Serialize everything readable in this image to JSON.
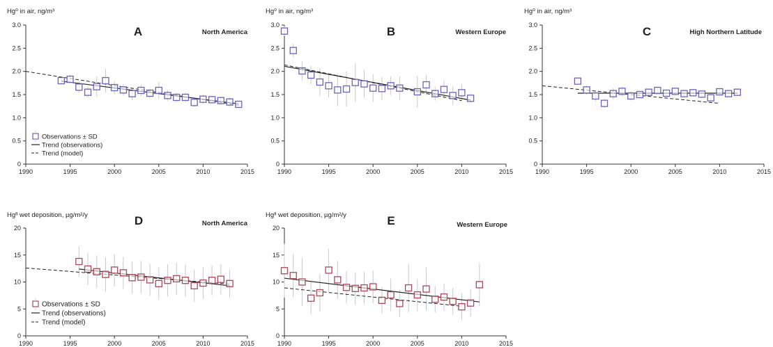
{
  "figure": {
    "colors": {
      "air": "#6a64b8",
      "deposition": "#a8485a",
      "error_bar": "#c9c9c9",
      "line": "#222222"
    }
  },
  "legend": {
    "observations": "Observations ± SD",
    "trend_obs": "Trend (observations)",
    "trend_model": "Trend (model)"
  },
  "chart_data": [
    {
      "type": "scatter",
      "panel": "A",
      "title": "North America",
      "ylabel": "Hg⁰ in air, ng/m³",
      "xlim": [
        1990,
        2015
      ],
      "ylim": [
        0,
        3.0
      ],
      "xticks": [
        1990,
        1995,
        2000,
        2005,
        2010,
        2015
      ],
      "yticks": [
        "0",
        "0.5",
        "1.0",
        "1.5",
        "2.0",
        "2.5",
        "3.0"
      ],
      "legend": true,
      "series": [
        {
          "name": "Observations ± SD",
          "x": [
            1994,
            1995,
            1996,
            1997,
            1998,
            1999,
            2000,
            2001,
            2002,
            2003,
            2004,
            2005,
            2006,
            2007,
            2008,
            2009,
            2010,
            2011,
            2012,
            2013,
            2014
          ],
          "y": [
            1.8,
            1.83,
            1.66,
            1.55,
            1.67,
            1.8,
            1.65,
            1.6,
            1.52,
            1.59,
            1.53,
            1.59,
            1.48,
            1.44,
            1.44,
            1.33,
            1.4,
            1.39,
            1.37,
            1.34,
            1.29
          ],
          "sd": [
            0.08,
            0.1,
            0.12,
            0.12,
            0.22,
            0.25,
            0.14,
            0.12,
            0.14,
            0.12,
            0.1,
            0.18,
            0.12,
            0.1,
            0.1,
            0.1,
            0.1,
            0.08,
            0.08,
            0.1,
            0.08
          ]
        }
      ],
      "trend_observations": {
        "x": [
          1994,
          2014
        ],
        "y": [
          1.79,
          1.3
        ]
      },
      "trend_model": {
        "x": [
          1990,
          2014
        ],
        "y": [
          2.0,
          1.27
        ]
      }
    },
    {
      "type": "scatter",
      "panel": "B",
      "title": "Western Europe",
      "ylabel": "Hg⁰ in air, ng/m³",
      "xlim": [
        1990,
        2015
      ],
      "ylim": [
        0,
        3.0
      ],
      "xticks": [
        1990,
        1995,
        2000,
        2005,
        2010,
        2015
      ],
      "yticks": [
        "0",
        "0.5",
        "1.0",
        "1.5",
        "2.0",
        "2.5",
        "3.0"
      ],
      "legend": false,
      "series": [
        {
          "name": "Observations ± SD",
          "x": [
            1990,
            1991,
            1992,
            1993,
            1994,
            1995,
            1996,
            1997,
            1998,
            1999,
            2000,
            2001,
            2002,
            2003,
            2005,
            2006,
            2007,
            2008,
            2009,
            2010,
            2011
          ],
          "y": [
            2.87,
            2.45,
            2.01,
            1.92,
            1.77,
            1.69,
            1.6,
            1.62,
            1.76,
            1.73,
            1.64,
            1.63,
            1.69,
            1.64,
            1.56,
            1.71,
            1.52,
            1.61,
            1.48,
            1.54,
            1.42
          ],
          "sd": [
            0.1,
            0.15,
            0.2,
            0.2,
            0.3,
            0.25,
            0.35,
            0.38,
            0.42,
            0.3,
            0.3,
            0.25,
            0.2,
            0.25,
            0.35,
            0.22,
            0.15,
            0.2,
            0.2,
            0.18,
            0.1
          ]
        }
      ],
      "trend_observations": {
        "x": [
          1990,
          2011
        ],
        "y": [
          2.11,
          1.38
        ]
      },
      "trend_model": {
        "x": [
          1990,
          2010
        ],
        "y": [
          2.14,
          1.37
        ]
      }
    },
    {
      "type": "scatter",
      "panel": "C",
      "title": "High Northern Latitude",
      "ylabel": "Hg⁰ in air, ng/m³",
      "xlim": [
        1990,
        2015
      ],
      "ylim": [
        0,
        3.0
      ],
      "xticks": [
        1990,
        1995,
        2000,
        2005,
        2010,
        2015
      ],
      "yticks": [
        "0",
        "0.5",
        "1.0",
        "1.5",
        "2.0",
        "2.5",
        "3.0"
      ],
      "legend": false,
      "series": [
        {
          "name": "Observations ± SD",
          "x": [
            1994,
            1995,
            1996,
            1997,
            1998,
            1999,
            2000,
            2001,
            2002,
            2003,
            2004,
            2005,
            2006,
            2007,
            2008,
            2009,
            2010,
            2011,
            2012
          ],
          "y": [
            1.79,
            1.6,
            1.47,
            1.31,
            1.52,
            1.57,
            1.47,
            1.5,
            1.55,
            1.59,
            1.53,
            1.57,
            1.52,
            1.54,
            1.51,
            1.43,
            1.56,
            1.52,
            1.55
          ],
          "sd": [
            0.05,
            0.1,
            0.12,
            0.1,
            0.12,
            0.1,
            0.1,
            0.08,
            0.08,
            0.08,
            0.08,
            0.08,
            0.08,
            0.08,
            0.08,
            0.1,
            0.08,
            0.08,
            0.08
          ]
        }
      ],
      "trend_observations": {
        "x": [
          1994,
          2012
        ],
        "y": [
          1.53,
          1.53
        ]
      },
      "trend_model": {
        "x": [
          1990,
          2010
        ],
        "y": [
          1.69,
          1.31
        ]
      }
    },
    {
      "type": "scatter",
      "panel": "D",
      "title": "North America",
      "ylabel": "Hgᴵᴵ wet deposition, µg/m²/y",
      "xlim": [
        1990,
        2015
      ],
      "ylim": [
        0,
        20
      ],
      "xticks": [
        1990,
        1995,
        2000,
        2005,
        2010,
        2015
      ],
      "yticks": [
        "0",
        "5",
        "10",
        "15",
        "20"
      ],
      "legend": true,
      "series": [
        {
          "name": "Observations ± SD",
          "x": [
            1996,
            1997,
            1998,
            1999,
            2000,
            2001,
            2002,
            2003,
            2004,
            2005,
            2006,
            2007,
            2008,
            2009,
            2010,
            2011,
            2012,
            2013
          ],
          "y": [
            13.8,
            12.4,
            11.9,
            11.4,
            12.2,
            11.7,
            10.8,
            10.9,
            10.4,
            9.7,
            10.3,
            10.6,
            10.3,
            9.3,
            9.8,
            10.3,
            10.5,
            9.7
          ],
          "sd": [
            2.8,
            3.0,
            3.0,
            3.2,
            3.0,
            3.0,
            3.0,
            3.0,
            3.0,
            3.0,
            3.0,
            3.0,
            3.0,
            3.0,
            3.0,
            2.8,
            2.8,
            2.6
          ]
        }
      ],
      "trend_observations": {
        "x": [
          1996,
          2013
        ],
        "y": [
          12.4,
          9.3
        ]
      },
      "trend_model": {
        "x": [
          1990,
          2013
        ],
        "y": [
          12.6,
          9.6
        ]
      }
    },
    {
      "type": "scatter",
      "panel": "E",
      "title": "Western Europe",
      "ylabel": "Hgᴵᴵ wet deposition, µg/m²/y",
      "xlim": [
        1990,
        2015
      ],
      "ylim": [
        0,
        20
      ],
      "xticks": [
        1990,
        1995,
        2000,
        2005,
        2010,
        2015
      ],
      "yticks": [
        "0",
        "5",
        "10",
        "15",
        "20"
      ],
      "legend": false,
      "series": [
        {
          "name": "Observations ± SD",
          "x": [
            1990,
            1991,
            1992,
            1993,
            1994,
            1995,
            1996,
            1997,
            1998,
            1999,
            2000,
            2001,
            2002,
            2003,
            2004,
            2005,
            2006,
            2007,
            2008,
            2009,
            2010,
            2011,
            2012
          ],
          "y": [
            12.1,
            11.2,
            10.0,
            7.0,
            8.0,
            12.2,
            10.4,
            9.0,
            8.8,
            8.9,
            9.1,
            6.6,
            7.6,
            6.0,
            8.9,
            7.6,
            8.7,
            6.8,
            7.2,
            6.4,
            5.4,
            6.1,
            9.5
          ],
          "sd": [
            5.0,
            4.0,
            4.5,
            3.0,
            3.5,
            4.0,
            3.5,
            3.0,
            3.0,
            3.0,
            3.0,
            2.5,
            3.0,
            2.5,
            4.5,
            3.0,
            4.0,
            2.5,
            2.5,
            2.5,
            2.5,
            2.5,
            4.0
          ]
        }
      ],
      "trend_observations": {
        "x": [
          1990,
          2012
        ],
        "y": [
          10.7,
          6.3
        ]
      },
      "trend_model": {
        "x": [
          1990,
          2010
        ],
        "y": [
          8.9,
          5.5
        ]
      }
    }
  ]
}
